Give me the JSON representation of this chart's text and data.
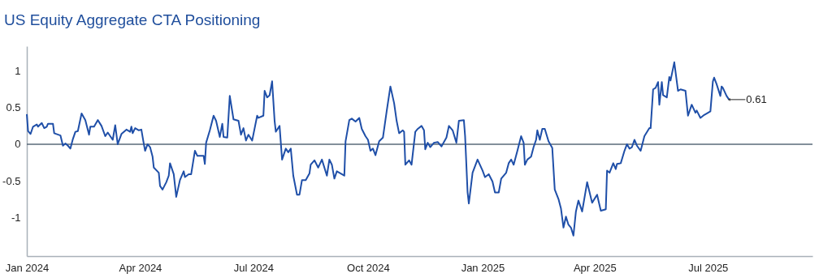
{
  "chart_data": {
    "type": "line",
    "title": "US Equity Aggregate CTA Positioning",
    "x": [
      "2024-01-01",
      "2024-01-02",
      "2024-01-04",
      "2024-01-06",
      "2024-01-09",
      "2024-01-10",
      "2024-01-13",
      "2024-01-15",
      "2024-01-17",
      "2024-01-18",
      "2024-01-22",
      "2024-01-23",
      "2024-01-28",
      "2024-01-30",
      "2024-02-01",
      "2024-02-03",
      "2024-02-05",
      "2024-02-07",
      "2024-02-09",
      "2024-02-11",
      "2024-02-14",
      "2024-02-17",
      "2024-02-20",
      "2024-02-21",
      "2024-02-24",
      "2024-02-27",
      "2024-03-01",
      "2024-03-04",
      "2024-03-06",
      "2024-03-10",
      "2024-03-12",
      "2024-03-14",
      "2024-03-17",
      "2024-03-21",
      "2024-03-24",
      "2024-03-25",
      "2024-03-26",
      "2024-03-28",
      "2024-03-31",
      "2024-04-02",
      "2024-04-04",
      "2024-04-05",
      "2024-04-07",
      "2024-04-09",
      "2024-04-11",
      "2024-04-12",
      "2024-04-16",
      "2024-04-17",
      "2024-04-19",
      "2024-04-22",
      "2024-04-24",
      "2024-04-25",
      "2024-04-28",
      "2024-04-30",
      "2024-05-03",
      "2024-05-06",
      "2024-05-07",
      "2024-05-10",
      "2024-05-12",
      "2024-05-15",
      "2024-05-17",
      "2024-05-22",
      "2024-05-23",
      "2024-05-24",
      "2024-05-27",
      "2024-05-30",
      "2024-06-01",
      "2024-06-04",
      "2024-06-06",
      "2024-06-07",
      "2024-06-10",
      "2024-06-12",
      "2024-06-15",
      "2024-06-19",
      "2024-06-21",
      "2024-06-23",
      "2024-06-25",
      "2024-06-27",
      "2024-06-30",
      "2024-07-04",
      "2024-07-05",
      "2024-07-09",
      "2024-07-10",
      "2024-07-12",
      "2024-07-14",
      "2024-07-16",
      "2024-07-18",
      "2024-07-19",
      "2024-07-22",
      "2024-07-24",
      "2024-07-27",
      "2024-07-29",
      "2024-07-31",
      "2024-08-02",
      "2024-08-05",
      "2024-08-07",
      "2024-08-09",
      "2024-08-12",
      "2024-08-15",
      "2024-08-16",
      "2024-08-19",
      "2024-08-22",
      "2024-08-25",
      "2024-08-29",
      "2024-08-31",
      "2024-09-02",
      "2024-09-04",
      "2024-09-06",
      "2024-09-10",
      "2024-09-12",
      "2024-09-13",
      "2024-09-16",
      "2024-09-18",
      "2024-09-21",
      "2024-09-24",
      "2024-09-26",
      "2024-09-29",
      "2024-10-01",
      "2024-10-03",
      "2024-10-05",
      "2024-10-07",
      "2024-10-10",
      "2024-10-13",
      "2024-10-16",
      "2024-10-19",
      "2024-10-22",
      "2024-10-24",
      "2024-10-26",
      "2024-10-29",
      "2024-10-30",
      "2024-10-31",
      "2024-11-03",
      "2024-11-05",
      "2024-11-08",
      "2024-11-10",
      "2024-11-13",
      "2024-11-15",
      "2024-11-16",
      "2024-11-18",
      "2024-11-20",
      "2024-11-23",
      "2024-11-26",
      "2024-11-29",
      "2024-12-03",
      "2024-12-05",
      "2024-12-08",
      "2024-12-11",
      "2024-12-13",
      "2024-12-17",
      "2024-12-18",
      "2024-12-20",
      "2024-12-21",
      "2024-12-24",
      "2024-12-28",
      "2025-01-01",
      "2025-01-03",
      "2025-01-06",
      "2025-01-09",
      "2025-01-11",
      "2025-01-14",
      "2025-01-16",
      "2025-01-20",
      "2025-01-22",
      "2025-01-24",
      "2025-01-26",
      "2025-01-29",
      "2025-02-01",
      "2025-02-03",
      "2025-02-04",
      "2025-02-06",
      "2025-02-09",
      "2025-02-11",
      "2025-02-13",
      "2025-02-14",
      "2025-02-16",
      "2025-02-18",
      "2025-02-20",
      "2025-02-23",
      "2025-02-26",
      "2025-02-28",
      "2025-03-03",
      "2025-03-05",
      "2025-03-07",
      "2025-03-09",
      "2025-03-11",
      "2025-03-13",
      "2025-03-15",
      "2025-03-17",
      "2025-03-19",
      "2025-03-22",
      "2025-03-26",
      "2025-03-30",
      "2025-04-03",
      "2025-04-06",
      "2025-04-10",
      "2025-04-11",
      "2025-04-13",
      "2025-04-16",
      "2025-04-18",
      "2025-04-19",
      "2025-04-22",
      "2025-04-25",
      "2025-04-27",
      "2025-04-29",
      "2025-05-01",
      "2025-05-03",
      "2025-05-05",
      "2025-05-08",
      "2025-05-11",
      "2025-05-15",
      "2025-05-16",
      "2025-05-18",
      "2025-05-20",
      "2025-05-22",
      "2025-05-23",
      "2025-05-25",
      "2025-05-26",
      "2025-05-29",
      "2025-05-31",
      "2025-06-01",
      "2025-06-04",
      "2025-06-07",
      "2025-06-09",
      "2025-06-13",
      "2025-06-15",
      "2025-06-18",
      "2025-06-21",
      "2025-06-22",
      "2025-06-25",
      "2025-06-28",
      "2025-06-30",
      "2025-07-03",
      "2025-07-05",
      "2025-07-06",
      "2025-07-08",
      "2025-07-11",
      "2025-07-12",
      "2025-07-13",
      "2025-07-16",
      "2025-07-18"
    ],
    "series": [
      {
        "color": "#1f4fa8",
        "values": [
          0.41,
          0.18,
          0.14,
          0.24,
          0.27,
          0.24,
          0.29,
          0.22,
          0.24,
          0.28,
          0.28,
          0.15,
          0.12,
          -0.02,
          0.01,
          -0.02,
          -0.06,
          0.07,
          0.17,
          0.18,
          0.42,
          0.33,
          0.13,
          0.24,
          0.24,
          0.33,
          0.25,
          0.11,
          0.16,
          0.06,
          0.26,
          0,
          0.14,
          0.2,
          0.17,
          0.24,
          0.15,
          0.22,
          0.19,
          0.2,
          0,
          -0.09,
          0,
          -0.04,
          -0.17,
          -0.32,
          -0.39,
          -0.57,
          -0.62,
          -0.52,
          -0.43,
          -0.26,
          -0.41,
          -0.72,
          -0.49,
          -0.37,
          -0.45,
          -0.41,
          -0.41,
          -0.09,
          -0.16,
          -0.16,
          -0.27,
          0.02,
          0.19,
          0.39,
          0.32,
          0.1,
          0.28,
          0.1,
          0.09,
          0.66,
          0.34,
          0.32,
          0.13,
          0.22,
          0.05,
          0.13,
          0.05,
          0.39,
          0.36,
          0.39,
          0.73,
          0.64,
          0.67,
          0.86,
          0.32,
          0.17,
          0.25,
          -0.21,
          -0.06,
          -0.11,
          -0.06,
          -0.43,
          -0.69,
          -0.69,
          -0.49,
          -0.49,
          -0.4,
          -0.28,
          -0.22,
          -0.32,
          -0.21,
          -0.43,
          -0.21,
          -0.28,
          -0.47,
          -0.37,
          -0.41,
          -0.43,
          0.04,
          0.33,
          0.35,
          0.31,
          0.36,
          0.21,
          0.11,
          0.06,
          -0.09,
          -0.06,
          -0.15,
          0.04,
          0.09,
          0.45,
          0.79,
          0.56,
          0.32,
          0.15,
          0.19,
          0.17,
          -0.28,
          -0.22,
          -0.28,
          0.17,
          0.21,
          0.25,
          0.19,
          -0.07,
          0.02,
          -0.04,
          0.02,
          0.03,
          -0.03,
          0.09,
          0.25,
          0.19,
          0.02,
          0.32,
          0.33,
          0.11,
          -0.66,
          -0.81,
          -0.39,
          -0.21,
          -0.36,
          -0.45,
          -0.41,
          -0.51,
          -0.66,
          -0.66,
          -0.47,
          -0.39,
          -0.26,
          -0.21,
          -0.28,
          -0.09,
          0.11,
          0.02,
          -0.28,
          -0.21,
          -0.17,
          -0.04,
          0.06,
          0.19,
          0.06,
          0.21,
          0.21,
          0.04,
          -0.05,
          -0.62,
          -0.75,
          -0.88,
          -1.14,
          -0.99,
          -1.1,
          -1.14,
          -1.25,
          -0.92,
          -0.77,
          -0.92,
          -0.52,
          -0.8,
          -0.69,
          -0.91,
          -0.89,
          -0.36,
          -0.39,
          -0.26,
          -0.34,
          -0.27,
          -0.26,
          -0.09,
          0,
          -0.06,
          -0.04,
          0.06,
          -0.02,
          -0.09,
          0.11,
          0.22,
          0.22,
          0.75,
          0.77,
          0.85,
          0.54,
          0.85,
          0.67,
          0.64,
          0.92,
          0.87,
          1.12,
          0.73,
          0.75,
          0.73,
          0.39,
          0.54,
          0.43,
          0.46,
          0.36,
          0.4,
          0.42,
          0.45,
          0.86,
          0.91,
          0.82,
          0.66,
          0.79,
          0.77,
          0.66,
          0.61
        ]
      }
    ],
    "xlim": [
      "2024-01-01",
      "2025-09-23"
    ],
    "xticks": [
      {
        "value": "2024-01-01",
        "label": "Jan 2024"
      },
      {
        "value": "2024-04-01",
        "label": "Apr 2024"
      },
      {
        "value": "2024-07-01",
        "label": "Jul 2024"
      },
      {
        "value": "2024-10-01",
        "label": "Oct 2024"
      },
      {
        "value": "2025-01-01",
        "label": "Jan 2025"
      },
      {
        "value": "2025-04-01",
        "label": "Apr 2025"
      },
      {
        "value": "2025-07-01",
        "label": "Jul 2025"
      }
    ],
    "ylim": [
      -1.53,
      1.34
    ],
    "yticks": [
      -1,
      -0.5,
      0,
      0.5,
      1
    ],
    "ref_lines": [
      {
        "axis": "y",
        "value": 0,
        "color": "#5a6a78"
      }
    ],
    "annotations": [
      {
        "text": "0.61",
        "x": "2025-07-18",
        "y": 0.61
      }
    ]
  }
}
